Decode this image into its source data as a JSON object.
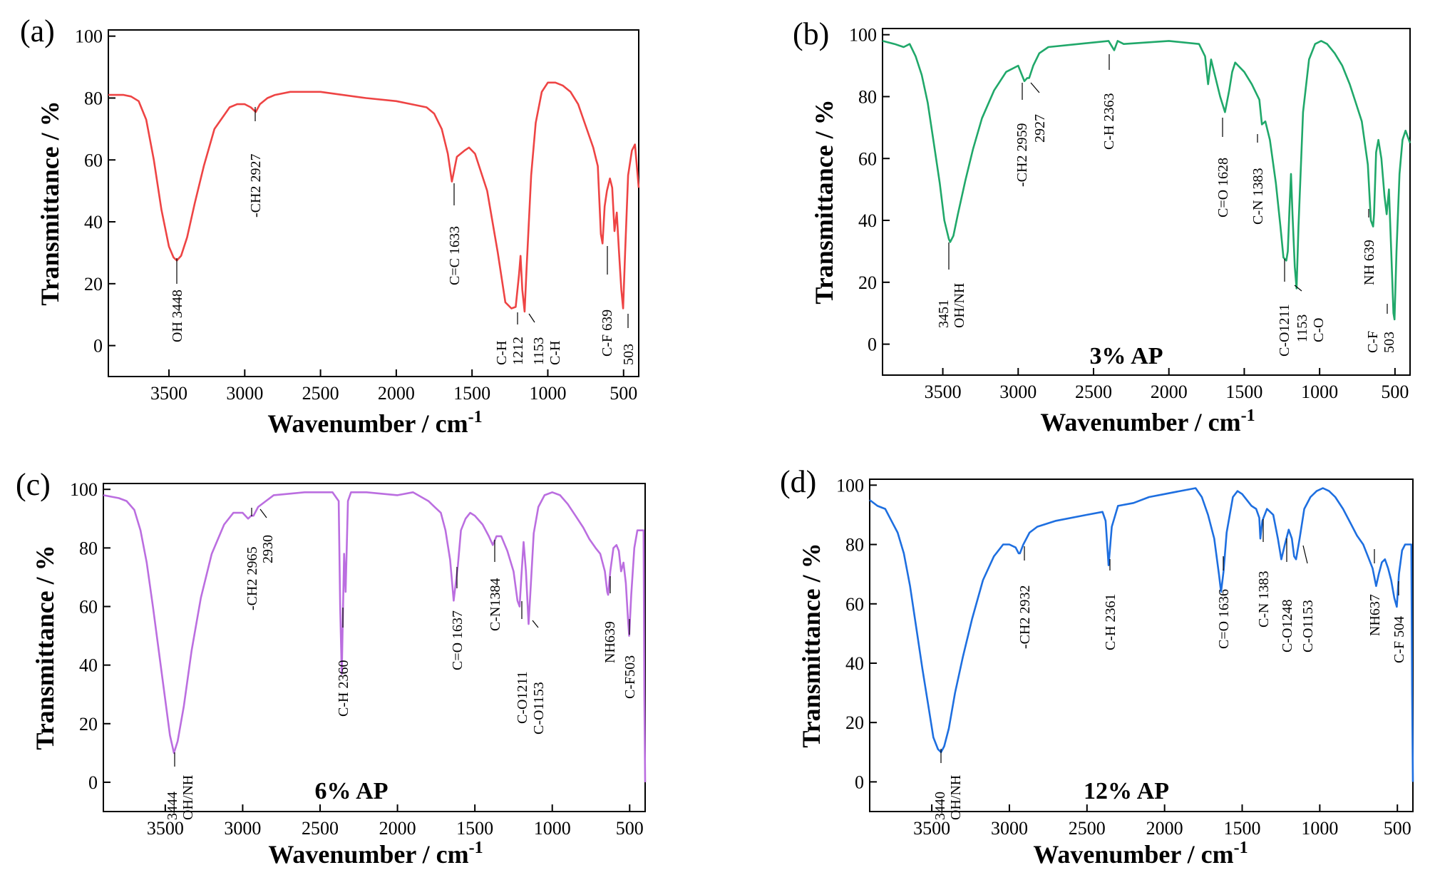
{
  "chart_data": [
    {
      "type": "line",
      "panel_label": "(a)",
      "title": "",
      "xlabel": "Wavenumber / cm",
      "xlabel_superscript": "-1",
      "ylabel": "Transmittance / %",
      "xlim": [
        3900,
        400
      ],
      "ylim": [
        -10,
        102
      ],
      "xticks": [
        "3500",
        "3000",
        "2500",
        "2000",
        "1500",
        "1000",
        "500"
      ],
      "yticks": [
        "0",
        "20",
        "40",
        "60",
        "80",
        "100"
      ],
      "color": "#ee4444",
      "note": "",
      "series": [
        {
          "name": "(a)",
          "x": [
            3900,
            3800,
            3750,
            3700,
            3650,
            3600,
            3550,
            3500,
            3470,
            3448,
            3420,
            3380,
            3330,
            3270,
            3200,
            3100,
            3050,
            3000,
            2960,
            2927,
            2900,
            2850,
            2800,
            2700,
            2500,
            2200,
            2000,
            1900,
            1800,
            1750,
            1700,
            1660,
            1633,
            1600,
            1550,
            1520,
            1480,
            1400,
            1330,
            1280,
            1240,
            1212,
            1190,
            1180,
            1168,
            1153,
            1140,
            1110,
            1080,
            1040,
            1000,
            950,
            900,
            850,
            800,
            750,
            700,
            670,
            650,
            639,
            625,
            610,
            590,
            575,
            560,
            545,
            530,
            515,
            503,
            490,
            470,
            445,
            425,
            400
          ],
          "y": [
            81,
            81,
            80.5,
            79,
            73,
            60,
            44,
            32,
            28.5,
            27.5,
            29,
            35,
            46,
            58,
            70,
            77,
            78,
            78,
            77,
            75.5,
            78,
            80,
            81,
            82,
            82,
            80,
            79,
            78,
            77,
            75,
            70,
            62,
            53,
            61,
            63,
            64,
            62,
            50,
            30,
            14,
            12,
            12.5,
            23,
            29,
            18,
            11,
            25,
            55,
            72,
            82,
            85,
            85,
            84,
            82,
            78,
            71,
            64,
            58,
            36,
            33,
            45,
            50,
            54,
            51,
            37,
            43,
            30,
            18,
            12,
            30,
            55,
            63,
            65,
            51
          ]
        }
      ],
      "annotations": [
        "OH 3448",
        "-CH2 2927",
        "C=C 1633",
        "C-H",
        "1212",
        "1153",
        "C-H",
        "C-F 639",
        "503"
      ]
    },
    {
      "type": "line",
      "panel_label": "(b)",
      "title": "",
      "xlabel": "Wavenumber / cm",
      "xlabel_superscript": "-1",
      "ylabel": "Transmittance / %",
      "xlim": [
        3900,
        400
      ],
      "ylim": [
        -10,
        102
      ],
      "xticks": [
        "3500",
        "3000",
        "2500",
        "2000",
        "1500",
        "1000",
        "500"
      ],
      "yticks": [
        "0",
        "20",
        "40",
        "60",
        "80",
        "100"
      ],
      "color": "#20a86a",
      "note": "3% AP",
      "series": [
        {
          "name": "3% AP",
          "x": [
            3900,
            3820,
            3760,
            3720,
            3680,
            3640,
            3600,
            3560,
            3520,
            3490,
            3460,
            3451,
            3430,
            3400,
            3350,
            3300,
            3240,
            3160,
            3080,
            3000,
            2959,
            2940,
            2927,
            2900,
            2860,
            2800,
            2600,
            2400,
            2363,
            2340,
            2300,
            2000,
            1800,
            1760,
            1740,
            1720,
            1700,
            1660,
            1628,
            1600,
            1580,
            1560,
            1540,
            1500,
            1450,
            1400,
            1383,
            1360,
            1330,
            1290,
            1260,
            1240,
            1221,
            1211,
            1200,
            1190,
            1180,
            1165,
            1153,
            1140,
            1110,
            1070,
            1030,
            990,
            950,
            900,
            850,
            800,
            760,
            720,
            680,
            660,
            645,
            639,
            625,
            610,
            590,
            570,
            555,
            540,
            525,
            510,
            503,
            490,
            470,
            450,
            430,
            400
          ],
          "y": [
            98,
            97,
            96,
            97,
            93,
            87,
            78,
            65,
            52,
            40,
            34,
            33,
            35,
            42,
            53,
            63,
            73,
            82,
            88,
            90,
            85,
            86,
            86,
            90,
            94,
            96,
            97,
            98,
            95,
            98,
            97,
            98,
            97,
            93,
            84,
            92,
            88,
            80,
            75,
            82,
            88,
            91,
            90,
            88,
            84,
            79,
            71,
            72,
            66,
            52,
            38,
            28,
            27,
            30,
            44,
            55,
            42,
            25,
            18,
            38,
            75,
            92,
            97,
            98,
            97,
            94,
            90,
            84,
            78,
            72,
            58,
            40,
            38,
            42,
            62,
            66,
            60,
            48,
            42,
            50,
            30,
            10,
            8,
            30,
            55,
            66,
            69,
            65
          ]
        }
      ],
      "annotations": [
        "3451",
        "OH/NH",
        "-CH2 2959",
        "2927",
        "C-H 2363",
        "C=O 1628",
        "C-N 1383",
        "C-O1211",
        "1153",
        "C-O",
        "NH 639",
        "C-F",
        "503"
      ]
    },
    {
      "type": "line",
      "panel_label": "(c)",
      "title": "",
      "xlabel": "Wavenumber / cm",
      "xlabel_superscript": "-1",
      "ylabel": "Transmittance / %",
      "xlim": [
        3900,
        400
      ],
      "ylim": [
        -10,
        102
      ],
      "xticks": [
        "3500",
        "3000",
        "2500",
        "2000",
        "1500",
        "1000",
        "500"
      ],
      "yticks": [
        "0",
        "20",
        "40",
        "60",
        "80",
        "100"
      ],
      "color": "#bb6ee0",
      "note": "6% AP",
      "series": [
        {
          "name": "6% AP",
          "x": [
            3900,
            3800,
            3750,
            3700,
            3660,
            3620,
            3580,
            3540,
            3500,
            3470,
            3444,
            3420,
            3380,
            3330,
            3270,
            3200,
            3120,
            3060,
            3000,
            2965,
            2945,
            2930,
            2900,
            2850,
            2800,
            2600,
            2420,
            2380,
            2370,
            2360,
            2345,
            2335,
            2320,
            2300,
            2200,
            2000,
            1900,
            1800,
            1760,
            1720,
            1690,
            1660,
            1637,
            1610,
            1590,
            1560,
            1530,
            1500,
            1450,
            1410,
            1384,
            1360,
            1330,
            1290,
            1250,
            1225,
            1211,
            1200,
            1185,
            1170,
            1153,
            1140,
            1120,
            1090,
            1050,
            1000,
            950,
            900,
            850,
            800,
            760,
            720,
            690,
            660,
            645,
            639,
            625,
            605,
            585,
            570,
            555,
            540,
            525,
            510,
            503,
            490,
            470,
            450,
            425,
            410,
            405,
            400
          ],
          "y": [
            98,
            97,
            96,
            93,
            86,
            75,
            60,
            44,
            28,
            16,
            10,
            14,
            26,
            45,
            63,
            78,
            88,
            92,
            92,
            90,
            91,
            91,
            94,
            96,
            98,
            99,
            99,
            96,
            60,
            37,
            78,
            65,
            96,
            99,
            99,
            98,
            99,
            96,
            94,
            92,
            86,
            76,
            62,
            74,
            86,
            90,
            92,
            91,
            88,
            84,
            81,
            84,
            84,
            79,
            72,
            62,
            60,
            70,
            82,
            72,
            54,
            66,
            85,
            94,
            98,
            99,
            98,
            95,
            91,
            87,
            83,
            80,
            78,
            72,
            65,
            64,
            72,
            80,
            81,
            79,
            72,
            75,
            68,
            55,
            50,
            64,
            80,
            86,
            86,
            86,
            30,
            0
          ]
        }
      ],
      "annotations": [
        "3444",
        "OH/NH",
        "-CH2 2965",
        "2930",
        "C-H 2360",
        "C=O 1637",
        "C-N1384",
        "C-O1211",
        "C-O1153",
        "NH639",
        "C-F503"
      ]
    },
    {
      "type": "line",
      "panel_label": "(d)",
      "title": "",
      "xlabel": "Wavenumber / cm",
      "xlabel_superscript": "-1",
      "ylabel": "Transmittance / %",
      "xlim": [
        3900,
        400
      ],
      "ylim": [
        -10,
        102
      ],
      "xticks": [
        "3500",
        "3000",
        "2500",
        "2000",
        "1500",
        "1000",
        "500"
      ],
      "yticks": [
        "0",
        "20",
        "40",
        "60",
        "80",
        "100"
      ],
      "color": "#1e6fe0",
      "note": "12% AP",
      "series": [
        {
          "name": "12% AP",
          "x": [
            3900,
            3850,
            3800,
            3760,
            3720,
            3680,
            3640,
            3600,
            3560,
            3520,
            3490,
            3460,
            3440,
            3420,
            3390,
            3350,
            3300,
            3240,
            3170,
            3100,
            3040,
            3000,
            2960,
            2940,
            2932,
            2910,
            2870,
            2820,
            2700,
            2500,
            2400,
            2380,
            2361,
            2340,
            2300,
            2200,
            2100,
            2000,
            1900,
            1800,
            1760,
            1720,
            1680,
            1650,
            1636,
            1620,
            1600,
            1560,
            1530,
            1500,
            1470,
            1440,
            1410,
            1390,
            1383,
            1370,
            1340,
            1300,
            1270,
            1248,
            1225,
            1200,
            1180,
            1165,
            1153,
            1130,
            1100,
            1060,
            1020,
            980,
            940,
            900,
            850,
            800,
            760,
            720,
            690,
            660,
            637,
            620,
            600,
            580,
            560,
            540,
            520,
            504,
            490,
            470,
            450,
            420,
            410,
            405,
            400
          ],
          "y": [
            95,
            93,
            92,
            88,
            84,
            77,
            66,
            52,
            38,
            25,
            15,
            11,
            10,
            12,
            18,
            30,
            42,
            55,
            68,
            76,
            80,
            80,
            79,
            77,
            77,
            80,
            84,
            86,
            88,
            90,
            91,
            88,
            73,
            86,
            93,
            94,
            96,
            97,
            98,
            99,
            96,
            90,
            82,
            70,
            64,
            71,
            84,
            96,
            98,
            97,
            95,
            93,
            92,
            89,
            82,
            88,
            92,
            90,
            82,
            75,
            80,
            85,
            82,
            76,
            75,
            82,
            92,
            96,
            98,
            99,
            98,
            96,
            92,
            87,
            83,
            80,
            76,
            72,
            66,
            70,
            74,
            75,
            72,
            68,
            62,
            59,
            70,
            78,
            80,
            80,
            80,
            30,
            0
          ]
        }
      ],
      "annotations": [
        "3440",
        "OH/NH",
        "-CH2 2932",
        "C-H 2361",
        "C=O 1636",
        "C-N 1383",
        "C-O1248",
        "C-O1153",
        "NH637",
        "C-F 504"
      ]
    }
  ]
}
